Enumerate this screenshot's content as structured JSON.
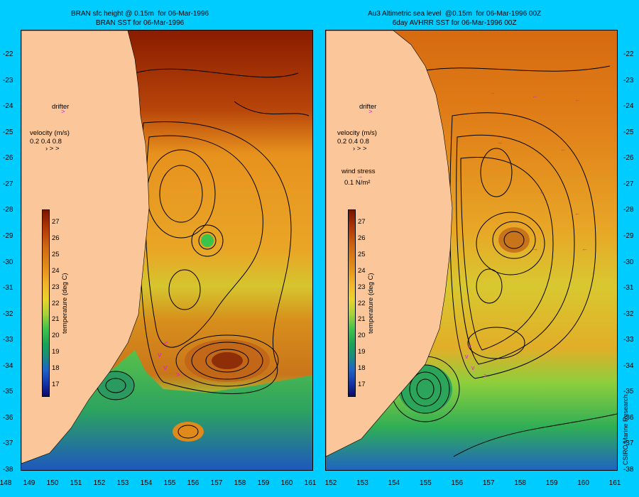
{
  "left_panel": {
    "title_line1": "BRAN sfc height @ 0.15m  for 06-Mar-1996",
    "title_line2": "BRAN SST for 06-Mar-1996",
    "drifter_label": "drifter",
    "velocity_label": "velocity (m/s)",
    "velocity_scale": "0.2 0.4 0.8"
  },
  "right_panel": {
    "title_line1": "Au3 Altimetric sea level  @0.15m  for 06-Mar-1996 00Z",
    "title_line2": "6day AVHRR SST for 06-Mar-1996 00Z",
    "drifter_label": "drifter",
    "velocity_label": "velocity (m/s)",
    "velocity_scale": "0.2 0.4 0.8",
    "wind_label": "wind stress",
    "wind_scale": "0.1 N/m²"
  },
  "colorbar": {
    "label": "temperature (deg C)",
    "ticks": [
      "27",
      "26",
      "25",
      "24",
      "23",
      "22",
      "21",
      "20",
      "19",
      "18",
      "17"
    ]
  },
  "y_axis": [
    "-22",
    "-23",
    "-24",
    "-25",
    "-26",
    "-27",
    "-28",
    "-29",
    "-30",
    "-31",
    "-32",
    "-33",
    "-34",
    "-35",
    "-36",
    "-37",
    "-38"
  ],
  "x_axis_left": [
    "148",
    "149",
    "150",
    "151",
    "152",
    "153",
    "154",
    "155",
    "156",
    "157",
    "158",
    "159",
    "160",
    "161"
  ],
  "x_axis_right": [
    "152",
    "153",
    "154",
    "155",
    "156",
    "157",
    "158",
    "159",
    "160",
    "161"
  ],
  "credit": "CSIRO Marine Research",
  "colors": {
    "background": "#00ccff",
    "land": "#fbc79a",
    "arrow": "#e01ee0"
  }
}
